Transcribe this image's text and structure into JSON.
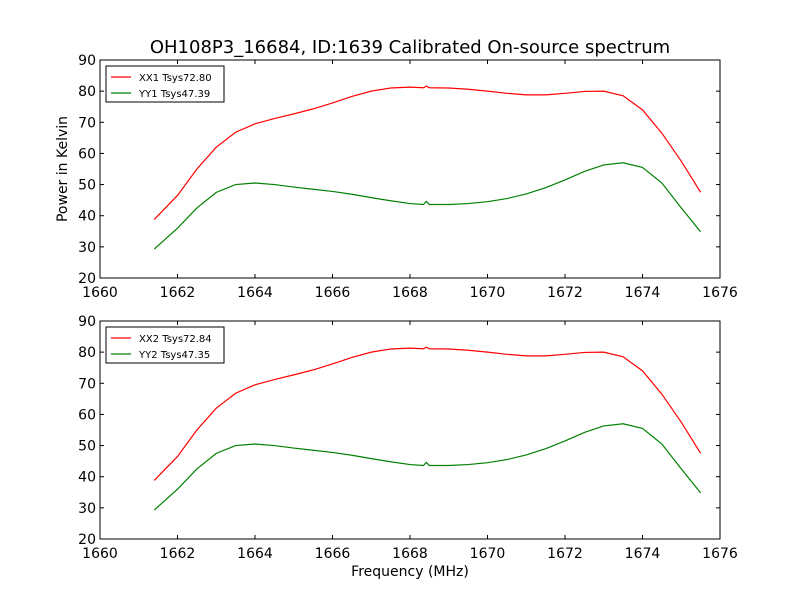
{
  "figure": {
    "title": "OH108P3_16684, ID:1639 Calibrated On-source spectrum"
  },
  "chart_data": [
    {
      "type": "line",
      "title": "OH108P3_16684, ID:1639 Calibrated On-source spectrum",
      "xlabel": "",
      "ylabel": "Power in Kelvin",
      "xlim": [
        1660,
        1676
      ],
      "ylim": [
        20,
        90
      ],
      "xticks": [
        1660,
        1662,
        1664,
        1666,
        1668,
        1670,
        1672,
        1674,
        1676
      ],
      "yticks": [
        20,
        30,
        40,
        50,
        60,
        70,
        80,
        90
      ],
      "grid": false,
      "legend_position": "top-left",
      "series": [
        {
          "name": "XX1 Tsys72.80",
          "color": "#ff0000",
          "x": [
            1661.4,
            1662.0,
            1662.5,
            1663.0,
            1663.5,
            1664.0,
            1664.5,
            1665.0,
            1665.5,
            1666.0,
            1666.5,
            1667.0,
            1667.5,
            1668.0,
            1668.35,
            1668.42,
            1668.5,
            1669.0,
            1669.5,
            1670.0,
            1670.5,
            1671.0,
            1671.5,
            1672.0,
            1672.5,
            1673.0,
            1673.5,
            1674.0,
            1674.5,
            1675.0,
            1675.5
          ],
          "y": [
            38.8,
            46.5,
            55.0,
            62.0,
            66.8,
            69.5,
            71.2,
            72.7,
            74.3,
            76.2,
            78.3,
            80.0,
            81.0,
            81.3,
            81.1,
            81.6,
            81.1,
            81.0,
            80.6,
            80.0,
            79.3,
            78.8,
            78.8,
            79.3,
            79.9,
            80.0,
            78.5,
            74.0,
            66.5,
            57.5,
            47.5
          ]
        },
        {
          "name": "YY1 Tsys47.39",
          "color": "#008000",
          "x": [
            1661.4,
            1662.0,
            1662.5,
            1663.0,
            1663.5,
            1664.0,
            1664.5,
            1665.0,
            1665.5,
            1666.0,
            1666.5,
            1667.0,
            1667.5,
            1668.0,
            1668.35,
            1668.42,
            1668.5,
            1669.0,
            1669.5,
            1670.0,
            1670.5,
            1671.0,
            1671.5,
            1672.0,
            1672.5,
            1673.0,
            1673.5,
            1674.0,
            1674.5,
            1675.0,
            1675.5
          ],
          "y": [
            29.3,
            36.0,
            42.5,
            47.5,
            50.0,
            50.5,
            50.0,
            49.2,
            48.5,
            47.8,
            46.9,
            45.8,
            44.8,
            43.9,
            43.6,
            44.6,
            43.6,
            43.6,
            43.9,
            44.5,
            45.5,
            47.0,
            49.0,
            51.5,
            54.2,
            56.3,
            57.0,
            55.5,
            50.5,
            42.5,
            34.8
          ]
        }
      ]
    },
    {
      "type": "line",
      "title": "",
      "xlabel": "Frequency (MHz)",
      "ylabel": "",
      "xlim": [
        1660,
        1676
      ],
      "ylim": [
        20,
        90
      ],
      "xticks": [
        1660,
        1662,
        1664,
        1666,
        1668,
        1670,
        1672,
        1674,
        1676
      ],
      "yticks": [
        20,
        30,
        40,
        50,
        60,
        70,
        80,
        90
      ],
      "grid": false,
      "legend_position": "top-left",
      "series": [
        {
          "name": "XX2 Tsys72.84",
          "color": "#ff0000",
          "x": [
            1661.4,
            1662.0,
            1662.5,
            1663.0,
            1663.5,
            1664.0,
            1664.5,
            1665.0,
            1665.5,
            1666.0,
            1666.5,
            1667.0,
            1667.5,
            1668.0,
            1668.35,
            1668.42,
            1668.5,
            1669.0,
            1669.5,
            1670.0,
            1670.5,
            1671.0,
            1671.5,
            1672.0,
            1672.5,
            1673.0,
            1673.5,
            1674.0,
            1674.5,
            1675.0,
            1675.5
          ],
          "y": [
            38.8,
            46.5,
            55.0,
            62.0,
            66.8,
            69.5,
            71.2,
            72.7,
            74.3,
            76.2,
            78.3,
            80.0,
            81.0,
            81.3,
            81.1,
            81.6,
            81.1,
            81.0,
            80.6,
            80.0,
            79.3,
            78.8,
            78.8,
            79.3,
            79.9,
            80.0,
            78.5,
            74.0,
            66.5,
            57.5,
            47.5
          ]
        },
        {
          "name": "YY2 Tsys47.35",
          "color": "#008000",
          "x": [
            1661.4,
            1662.0,
            1662.5,
            1663.0,
            1663.5,
            1664.0,
            1664.5,
            1665.0,
            1665.5,
            1666.0,
            1666.5,
            1667.0,
            1667.5,
            1668.0,
            1668.35,
            1668.42,
            1668.5,
            1669.0,
            1669.5,
            1670.0,
            1670.5,
            1671.0,
            1671.5,
            1672.0,
            1672.5,
            1673.0,
            1673.5,
            1674.0,
            1674.5,
            1675.0,
            1675.5
          ],
          "y": [
            29.3,
            36.0,
            42.5,
            47.5,
            50.0,
            50.5,
            50.0,
            49.2,
            48.5,
            47.8,
            46.9,
            45.8,
            44.8,
            43.9,
            43.6,
            44.6,
            43.6,
            43.6,
            43.9,
            44.5,
            45.5,
            47.0,
            49.0,
            51.5,
            54.2,
            56.3,
            57.0,
            55.5,
            50.5,
            42.5,
            34.8
          ]
        }
      ]
    }
  ]
}
